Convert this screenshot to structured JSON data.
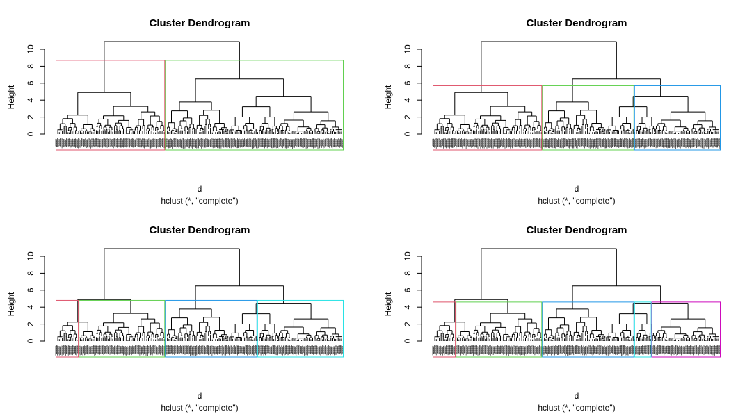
{
  "chart_data": [
    {
      "type": "dendrogram",
      "title": "Cluster Dendrogram",
      "xlabel": "d",
      "sublabel": "hclust (*, \"complete\")",
      "ylabel": "Height",
      "yticks": [
        0,
        2,
        4,
        6,
        8,
        10
      ],
      "ylim": [
        0,
        11
      ],
      "root_height": 10.9,
      "rect_height": 8.7,
      "clusters": [
        {
          "fraction": 0.38,
          "color": "#DF536B"
        },
        {
          "fraction": 0.62,
          "color": "#61D04F"
        }
      ]
    },
    {
      "type": "dendrogram",
      "title": "Cluster Dendrogram",
      "xlabel": "d",
      "sublabel": "hclust (*, \"complete\")",
      "ylabel": "Height",
      "yticks": [
        0,
        2,
        4,
        6,
        8,
        10
      ],
      "ylim": [
        0,
        11
      ],
      "root_height": 10.9,
      "rect_height": 5.7,
      "clusters": [
        {
          "fraction": 0.38,
          "color": "#DF536B"
        },
        {
          "fraction": 0.32,
          "color": "#61D04F"
        },
        {
          "fraction": 0.3,
          "color": "#2297E6"
        }
      ]
    },
    {
      "type": "dendrogram",
      "title": "Cluster Dendrogram",
      "xlabel": "d",
      "sublabel": "hclust (*, \"complete\")",
      "ylabel": "Height",
      "yticks": [
        0,
        2,
        4,
        6,
        8,
        10
      ],
      "ylim": [
        0,
        11
      ],
      "root_height": 10.9,
      "rect_height": 4.8,
      "clusters": [
        {
          "fraction": 0.08,
          "color": "#DF536B"
        },
        {
          "fraction": 0.3,
          "color": "#61D04F"
        },
        {
          "fraction": 0.32,
          "color": "#2297E6"
        },
        {
          "fraction": 0.3,
          "color": "#28E2E5"
        }
      ]
    },
    {
      "type": "dendrogram",
      "title": "Cluster Dendrogram",
      "xlabel": "d",
      "sublabel": "hclust (*, \"complete\")",
      "ylabel": "Height",
      "yticks": [
        0,
        2,
        4,
        6,
        8,
        10
      ],
      "ylim": [
        0,
        11
      ],
      "root_height": 10.9,
      "rect_height": 4.6,
      "clusters": [
        {
          "fraction": 0.08,
          "color": "#DF536B"
        },
        {
          "fraction": 0.3,
          "color": "#61D04F"
        },
        {
          "fraction": 0.32,
          "color": "#2297E6"
        },
        {
          "fraction": 0.06,
          "color": "#28E2E5"
        },
        {
          "fraction": 0.24,
          "color": "#CD0BBC"
        }
      ]
    }
  ]
}
